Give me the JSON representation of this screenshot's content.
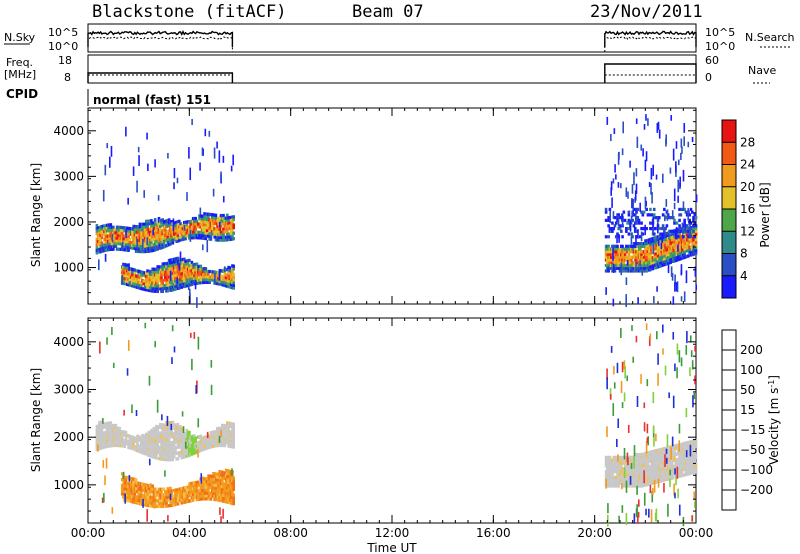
{
  "header": {
    "station": "Blackstone (fitACF)",
    "beam": "Beam 07",
    "date": "23/Nov/2011"
  },
  "panels": {
    "nsky": {
      "left_label": "N.Sky",
      "right_label": "N.Search",
      "left_ticks": [
        "10^5",
        "10^0"
      ],
      "right_ticks": [
        "10^5",
        "10^0"
      ]
    },
    "freq": {
      "left_label_1": "Freq.",
      "left_label_2": "[MHz]",
      "right_label": "Nave",
      "left_ticks": [
        "18",
        "8"
      ],
      "right_ticks": [
        "60",
        "0"
      ]
    },
    "cpid": {
      "label": "CPID",
      "mode": "normal (fast) 151"
    }
  },
  "chart_data": [
    {
      "type": "heatmap",
      "name": "power",
      "ylabel": "Slant Range [km]",
      "xlabel": "Time UT",
      "ylim": [
        200,
        4500
      ],
      "yticks": [
        1000,
        2000,
        3000,
        4000
      ],
      "xticks": [
        "00:00",
        "04:00",
        "08:00",
        "12:00",
        "16:00",
        "20:00",
        "00:00"
      ],
      "xlim_hours": [
        0,
        24
      ],
      "data_gap_hours": [
        5.7,
        20.4
      ],
      "colorbar": {
        "label": "Power [dB]",
        "ticks": [
          "4",
          "8",
          "12",
          "16",
          "20",
          "24",
          "28"
        ],
        "colors": [
          "#1a1aff",
          "#2a4fc4",
          "#2f8a8a",
          "#4ea64a",
          "#e3c12a",
          "#f09a1e",
          "#f05a14",
          "#e81414"
        ]
      },
      "echo_bands": [
        {
          "t": [
            0.5,
            5.7
          ],
          "range": [
            1300,
            1900
          ],
          "power_db": 20
        },
        {
          "t": [
            1.5,
            5.7
          ],
          "range": [
            600,
            1100
          ],
          "power_db": 16
        },
        {
          "t": [
            20.4,
            24
          ],
          "range": [
            900,
            1800
          ],
          "power_db": 18
        }
      ]
    },
    {
      "type": "heatmap",
      "name": "velocity",
      "ylabel": "Slant Range [km]",
      "xlabel": "Time UT",
      "ylim": [
        200,
        4500
      ],
      "yticks": [
        1000,
        2000,
        3000,
        4000
      ],
      "xticks": [
        "00:00",
        "04:00",
        "08:00",
        "12:00",
        "16:00",
        "20:00",
        "00:00"
      ],
      "colorbar": {
        "label": "Velocity [m s",
        "label_sup": "-1",
        "label_end": "]",
        "ticks": [
          "200",
          "100",
          "50",
          "15",
          "−15",
          "−50",
          "−100",
          "−200"
        ],
        "colors": [
          "#1c2fd8",
          "#3e63b8",
          "#3a9b3a",
          "#7fd23a",
          "#c8c8c8",
          "#f5c04a",
          "#f39a1e",
          "#f07018",
          "#e83030"
        ]
      },
      "echo_bands": [
        {
          "t": [
            0.5,
            5.7
          ],
          "range": [
            1700,
            2200
          ],
          "velocity": 0
        },
        {
          "t": [
            1.5,
            5.7
          ],
          "range": [
            600,
            1100
          ],
          "velocity": -60
        },
        {
          "t": [
            20.4,
            24
          ],
          "range": [
            1000,
            2000
          ],
          "velocity": 0
        }
      ]
    }
  ]
}
